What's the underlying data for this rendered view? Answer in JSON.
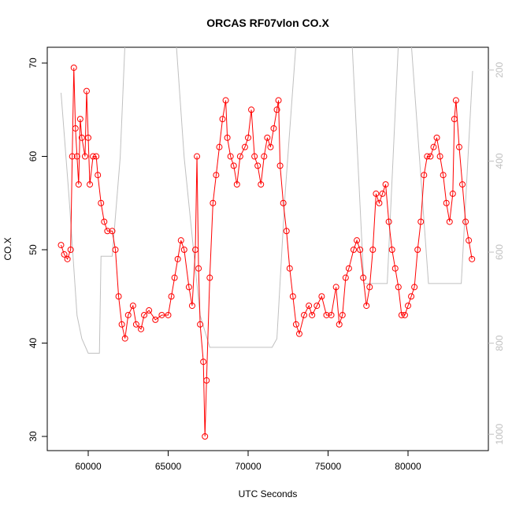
{
  "chart_data": {
    "type": "line",
    "title": "ORCAS RF07vlon CO.X",
    "x_label": "UTC Seconds",
    "y_label": "CO.X",
    "xlim": [
      57438,
      85025
    ],
    "xticks": [
      60000,
      65000,
      70000,
      75000,
      80000
    ],
    "ylim": [
      28.48,
      71.69
    ],
    "yticks": [
      30,
      40,
      50,
      60,
      70
    ],
    "y2lim": [
      1036,
      150
    ],
    "y2ticks": [
      200,
      400,
      600,
      800,
      1000
    ],
    "series": [
      {
        "color": "#ff0000",
        "markers": true,
        "x": [
          58300,
          58500,
          58700,
          58900,
          59000,
          59100,
          59200,
          59300,
          59400,
          59500,
          59600,
          59800,
          59900,
          60000,
          60100,
          60300,
          60500,
          60600,
          60800,
          61000,
          61200,
          61500,
          61700,
          61900,
          62100,
          62300,
          62500,
          62800,
          63000,
          63300,
          63500,
          63800,
          64200,
          64600,
          65000,
          65200,
          65400,
          65600,
          65800,
          66000,
          66300,
          66500,
          66700,
          66800,
          66900,
          67000,
          67200,
          67300,
          67400,
          67600,
          67800,
          68000,
          68200,
          68400,
          68600,
          68700,
          68900,
          69100,
          69300,
          69500,
          69800,
          70000,
          70200,
          70400,
          70600,
          70800,
          71000,
          71200,
          71400,
          71600,
          71800,
          71900,
          72000,
          72200,
          72400,
          72600,
          72800,
          73000,
          73200,
          73500,
          73800,
          74000,
          74300,
          74600,
          74900,
          75200,
          75500,
          75700,
          75900,
          76100,
          76300,
          76600,
          76800,
          77000,
          77200,
          77400,
          77600,
          77800,
          78000,
          78200,
          78400,
          78600,
          78800,
          79000,
          79200,
          79400,
          79600,
          79800,
          80000,
          80200,
          80400,
          80600,
          80800,
          81000,
          81200,
          81400,
          81600,
          81800,
          82000,
          82200,
          82400,
          82600,
          82800,
          82900,
          83000,
          83200,
          83400,
          83600,
          83800,
          84000
        ],
        "values": [
          50.5,
          49.5,
          49,
          50,
          60,
          69.5,
          63,
          60,
          57,
          64,
          62,
          60,
          67,
          62,
          57,
          60,
          60,
          58,
          55,
          53,
          52,
          52,
          50,
          45,
          42,
          40.5,
          43,
          44,
          42,
          41.5,
          43,
          43.5,
          42.5,
          43,
          43,
          45,
          47,
          49,
          51,
          50,
          46,
          44,
          50,
          60,
          48,
          42,
          38,
          30,
          36,
          47,
          55,
          58,
          61,
          64,
          66,
          62,
          60,
          59,
          57,
          60,
          61,
          62,
          65,
          60,
          59,
          57,
          60,
          62,
          61,
          63,
          65,
          66,
          59,
          55,
          52,
          48,
          45,
          42,
          41,
          43,
          44,
          43,
          44,
          45,
          43,
          43,
          46,
          42,
          43,
          47,
          48,
          50,
          51,
          50,
          47,
          44,
          46,
          50,
          56,
          55,
          56,
          57,
          53,
          50,
          48,
          46,
          43,
          43,
          44,
          45,
          46,
          50,
          53,
          58,
          60,
          60,
          61,
          62,
          60,
          58,
          55,
          53,
          56,
          64,
          66,
          61,
          57,
          53,
          51,
          49
        ]
      },
      {
        "color": "#c0c0c0",
        "axis": "y2",
        "x": [
          58300,
          58800,
          59300,
          59600,
          60000,
          60700,
          60800,
          61500,
          62000,
          62300,
          65500,
          66000,
          67000,
          67600,
          71500,
          71800,
          72300,
          73000,
          76500,
          77240,
          78700,
          79400,
          80200,
          81280,
          83330,
          84040
        ],
        "values": [
          250,
          479,
          739,
          790,
          822,
          822,
          609,
          609,
          392,
          140,
          140,
          392,
          739,
          809,
          809,
          790,
          479,
          140,
          140,
          669,
          669,
          140,
          140,
          669,
          669,
          202
        ]
      }
    ]
  }
}
